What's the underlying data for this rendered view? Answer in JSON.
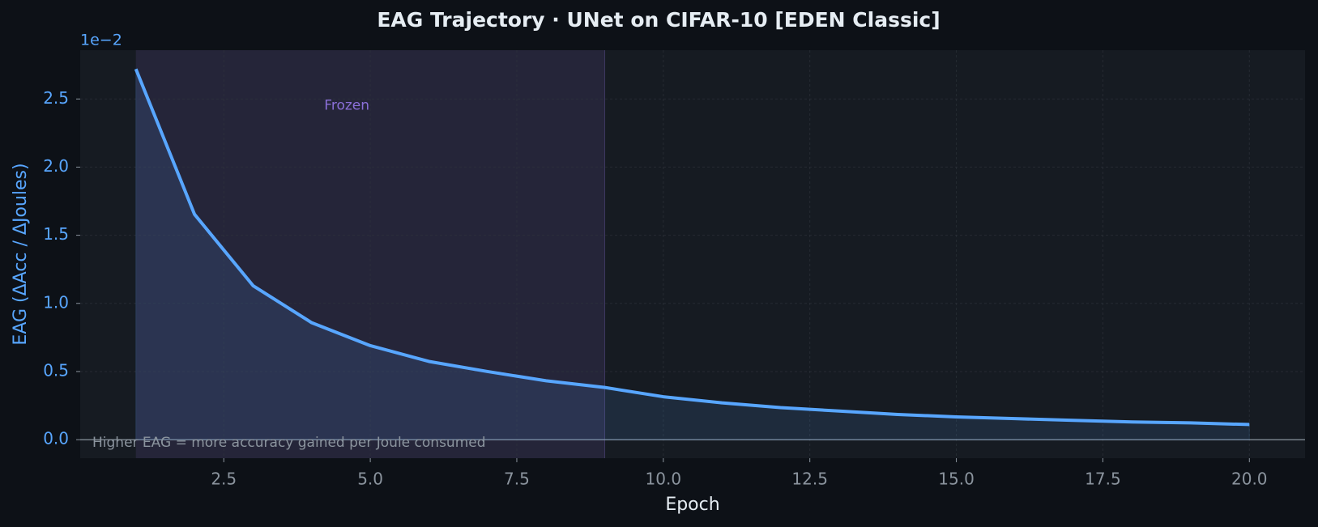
{
  "chart_data": {
    "type": "line",
    "title": "EAG Trajectory  ·  UNet on CIFAR-10  [EDEN Classic]",
    "x_label": "Epoch",
    "y_label": "EAG  (ΔAcc / ΔJoules)",
    "y_offset_label": "1e−2",
    "x": [
      1,
      2,
      3,
      4,
      5,
      6,
      7,
      8,
      9,
      10,
      11,
      12,
      13,
      14,
      15,
      16,
      17,
      18,
      19,
      20
    ],
    "series": [
      {
        "name": "EAG",
        "color": "#58a6ff",
        "values": [
          2.72,
          1.654,
          1.13,
          0.858,
          0.69,
          0.574,
          0.5,
          0.432,
          0.383,
          0.315,
          0.27,
          0.235,
          0.21,
          0.185,
          0.167,
          0.154,
          0.142,
          0.13,
          0.123,
          0.111
        ]
      }
    ],
    "xlim": [
      0.05,
      20.95
    ],
    "ylim": [
      -0.136,
      2.858
    ],
    "xticks": [
      2.5,
      {
        "value": 5,
        "label": "5.0"
      },
      7.5,
      {
        "value": 10,
        "label": "10.0"
      },
      12.5,
      {
        "value": 15,
        "label": "15.0"
      },
      17.5,
      {
        "value": 20,
        "label": "20.0"
      }
    ],
    "yticks": [
      {
        "value": 0,
        "label": "0.0"
      },
      0.5,
      {
        "value": 1,
        "label": "1.0"
      },
      1.5,
      {
        "value": 2,
        "label": "2.0"
      },
      2.5
    ],
    "shaded_region": {
      "start": 1,
      "end": 9,
      "label": "Frozen",
      "color": "#8a6fd8"
    },
    "footnote": "Higher EAG = more accuracy gained per Joule consumed",
    "grid": true
  }
}
